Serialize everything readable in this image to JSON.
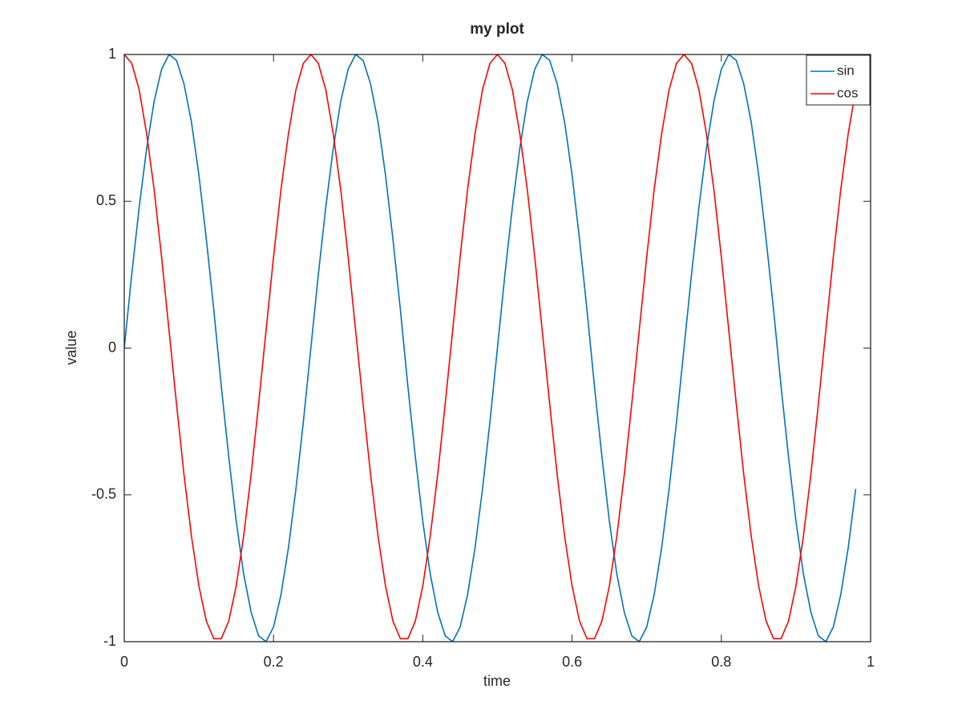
{
  "chart_data": {
    "type": "line",
    "title": "my plot",
    "xlabel": "time",
    "ylabel": "value",
    "x": [
      0,
      0.01,
      0.02,
      0.03,
      0.04,
      0.05,
      0.06,
      0.07,
      0.08,
      0.09,
      0.1,
      0.11,
      0.12,
      0.13,
      0.14,
      0.15,
      0.16,
      0.17,
      0.18,
      0.19,
      0.2,
      0.21,
      0.22,
      0.23,
      0.24,
      0.25,
      0.26,
      0.27,
      0.28,
      0.29,
      0.3,
      0.31,
      0.32,
      0.33,
      0.34,
      0.35,
      0.36,
      0.37,
      0.38,
      0.39,
      0.4,
      0.41,
      0.42,
      0.43,
      0.44,
      0.45,
      0.46,
      0.47,
      0.48,
      0.49,
      0.5,
      0.51,
      0.52,
      0.53,
      0.54,
      0.55,
      0.56,
      0.57,
      0.58,
      0.59,
      0.6,
      0.61,
      0.62,
      0.63,
      0.64,
      0.65,
      0.66,
      0.67,
      0.68,
      0.69,
      0.7,
      0.71,
      0.72,
      0.73,
      0.74,
      0.75,
      0.76,
      0.77,
      0.78,
      0.79,
      0.8,
      0.81,
      0.82,
      0.83,
      0.84,
      0.85,
      0.86,
      0.87,
      0.88,
      0.89,
      0.9,
      0.91,
      0.92,
      0.93,
      0.94,
      0.95,
      0.96,
      0.97,
      0.98
    ],
    "series": [
      {
        "name": "sin",
        "color": "#0072bd",
        "values": [
          0,
          0.25,
          0.48,
          0.68,
          0.84,
          0.95,
          1,
          0.98,
          0.9,
          0.77,
          0.59,
          0.37,
          0.13,
          -0.13,
          -0.37,
          -0.59,
          -0.77,
          -0.9,
          -0.98,
          -1,
          -0.95,
          -0.84,
          -0.68,
          -0.48,
          -0.25,
          0,
          0.25,
          0.48,
          0.68,
          0.84,
          0.95,
          1,
          0.98,
          0.9,
          0.77,
          0.59,
          0.37,
          0.13,
          -0.13,
          -0.37,
          -0.59,
          -0.77,
          -0.9,
          -0.98,
          -1,
          -0.95,
          -0.84,
          -0.68,
          -0.48,
          -0.25,
          0,
          0.25,
          0.48,
          0.68,
          0.84,
          0.95,
          1,
          0.98,
          0.9,
          0.77,
          0.59,
          0.37,
          0.13,
          -0.13,
          -0.37,
          -0.59,
          -0.77,
          -0.9,
          -0.98,
          -1,
          -0.95,
          -0.84,
          -0.68,
          -0.48,
          -0.25,
          0,
          0.25,
          0.48,
          0.68,
          0.84,
          0.95,
          1,
          0.98,
          0.9,
          0.77,
          0.59,
          0.37,
          0.13,
          -0.13,
          -0.37,
          -0.59,
          -0.77,
          -0.9,
          -0.98,
          -1,
          -0.95,
          -0.84,
          -0.68,
          -0.48
        ]
      },
      {
        "name": "cos",
        "color": "#ff0000",
        "values": [
          1,
          0.97,
          0.88,
          0.73,
          0.54,
          0.31,
          0.06,
          -0.19,
          -0.43,
          -0.64,
          -0.81,
          -0.93,
          -0.99,
          -0.99,
          -0.93,
          -0.81,
          -0.64,
          -0.43,
          -0.19,
          0.06,
          0.31,
          0.54,
          0.73,
          0.88,
          0.97,
          1,
          0.97,
          0.88,
          0.73,
          0.54,
          0.31,
          0.06,
          -0.19,
          -0.43,
          -0.64,
          -0.81,
          -0.93,
          -0.99,
          -0.99,
          -0.93,
          -0.81,
          -0.64,
          -0.43,
          -0.19,
          0.06,
          0.31,
          0.54,
          0.73,
          0.88,
          0.97,
          1,
          0.97,
          0.88,
          0.73,
          0.54,
          0.31,
          0.06,
          -0.19,
          -0.43,
          -0.64,
          -0.81,
          -0.93,
          -0.99,
          -0.99,
          -0.93,
          -0.81,
          -0.64,
          -0.43,
          -0.19,
          0.06,
          0.31,
          0.54,
          0.73,
          0.88,
          0.97,
          1,
          0.97,
          0.88,
          0.73,
          0.54,
          0.31,
          0.06,
          -0.19,
          -0.43,
          -0.64,
          -0.81,
          -0.93,
          -0.99,
          -0.99,
          -0.93,
          -0.81,
          -0.64,
          -0.43,
          -0.19,
          0.06,
          0.31,
          0.54,
          0.73,
          0.88
        ]
      }
    ],
    "xlim": [
      0,
      1
    ],
    "xticks": [
      0,
      0.2,
      0.4,
      0.6,
      0.8,
      1
    ],
    "ylim": [
      -1,
      1
    ],
    "yticks": [
      -1,
      -0.5,
      0,
      0.5,
      1
    ],
    "grid": false,
    "legend": "northeast"
  }
}
